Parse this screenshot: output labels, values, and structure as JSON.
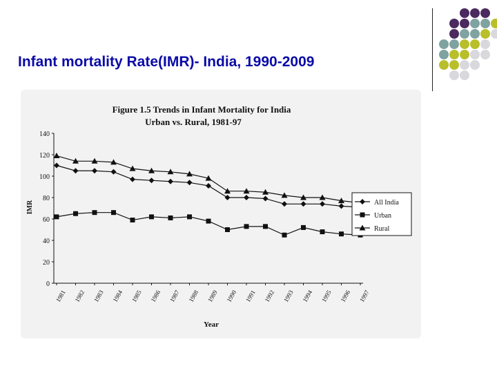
{
  "slide": {
    "title": "Infant mortality Rate(IMR)- India, 1990-2009",
    "title_color": "#0a0aa8",
    "dot_colors": {
      "purple": "#4b2a5f",
      "teal": "#7fa3a0",
      "olive": "#b8bf2a",
      "gray": "#d8d8dd"
    }
  },
  "chart_data": {
    "type": "line",
    "title": "Figure 1.5 Trends in Infant Mortality for India",
    "subtitle": "Urban vs. Rural, 1981-97",
    "xlabel": "Year",
    "ylabel": "IMR",
    "ylim": [
      0,
      140
    ],
    "yticks": [
      0,
      20,
      40,
      60,
      80,
      100,
      120,
      140
    ],
    "grid": false,
    "legend_position": "right",
    "categories": [
      "1981",
      "1982",
      "1983",
      "1984",
      "1985",
      "1986",
      "1987",
      "1988",
      "1989",
      "1990",
      "1991",
      "1992",
      "1993",
      "1994",
      "1995",
      "1996",
      "1997"
    ],
    "series": [
      {
        "name": "All India",
        "marker": "diamond",
        "values": [
          110,
          105,
          105,
          104,
          97,
          96,
          95,
          94,
          91,
          80,
          80,
          79,
          74,
          74,
          74,
          72,
          71
        ]
      },
      {
        "name": "Urban",
        "marker": "square",
        "values": [
          62,
          65,
          66,
          66,
          59,
          62,
          61,
          62,
          58,
          50,
          53,
          53,
          45,
          52,
          48,
          46,
          45
        ]
      },
      {
        "name": "Rural",
        "marker": "triangle",
        "values": [
          119,
          114,
          114,
          113,
          107,
          105,
          104,
          102,
          98,
          86,
          86,
          85,
          82,
          80,
          80,
          77,
          75
        ]
      }
    ]
  }
}
